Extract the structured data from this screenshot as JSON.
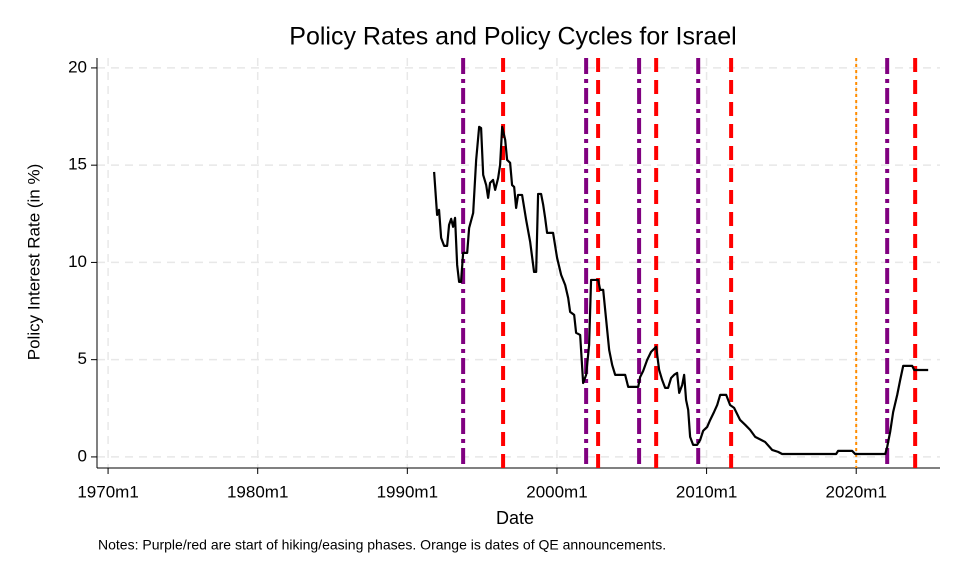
{
  "chart_data": {
    "type": "line",
    "title": "Policy Rates and Policy Cycles for Israel",
    "x_label": "Date",
    "y_label": "Policy Interest Rate (in %)",
    "note": "Notes: Purple/red are start of hiking/easing phases. Orange is dates of QE announcements.",
    "xlim": [
      1969.26,
      2025.6
    ],
    "ylim": [
      -0.57,
      20.51
    ],
    "xticks": [
      {
        "value": 1970,
        "label": "1970m1"
      },
      {
        "value": 1980,
        "label": "1980m1"
      },
      {
        "value": 1990,
        "label": "1990m1"
      },
      {
        "value": 2000,
        "label": "2000m1"
      },
      {
        "value": 2010,
        "label": "2010m1"
      },
      {
        "value": 2020,
        "label": "2020m1"
      }
    ],
    "yticks": [
      0,
      5,
      10,
      15,
      20
    ],
    "grid": true,
    "color": "#000000",
    "x": [
      1991.79,
      1991.99,
      1992.12,
      1992.26,
      1992.46,
      1992.66,
      1992.79,
      1992.93,
      1993.06,
      1993.19,
      1993.33,
      1993.46,
      1993.59,
      1993.73,
      1994.0,
      1994.13,
      1994.4,
      1994.6,
      1994.8,
      1994.93,
      1995.07,
      1995.27,
      1995.4,
      1995.53,
      1995.73,
      1995.87,
      1996.07,
      1996.2,
      1996.34,
      1996.54,
      1996.67,
      1996.87,
      1997.0,
      1997.14,
      1997.27,
      1997.4,
      1997.67,
      1997.94,
      1998.21,
      1998.47,
      1998.61,
      1998.74,
      1998.94,
      1999.08,
      1999.21,
      1999.34,
      1999.74,
      2000.01,
      2000.28,
      2000.55,
      2000.75,
      2000.88,
      2001.15,
      2001.28,
      2001.55,
      2001.75,
      2001.95,
      2002.15,
      2002.28,
      2002.75,
      2002.89,
      2003.09,
      2003.29,
      2003.49,
      2003.69,
      2003.89,
      2004.56,
      2004.76,
      2005.43,
      2005.56,
      2005.76,
      2006.03,
      2006.29,
      2006.63,
      2006.83,
      2007.03,
      2007.23,
      2007.43,
      2007.63,
      2007.83,
      2008.03,
      2008.17,
      2008.37,
      2008.5,
      2008.63,
      2008.77,
      2008.9,
      2009.1,
      2009.37,
      2009.57,
      2009.77,
      2010.04,
      2010.24,
      2010.5,
      2010.71,
      2010.91,
      2011.31,
      2011.57,
      2011.84,
      2012.24,
      2012.58,
      2012.91,
      2013.25,
      2013.91,
      2014.38,
      2014.78,
      2015.05,
      2018.66,
      2018.79,
      2019.73,
      2019.93,
      2021.94,
      2022.07,
      2022.27,
      2022.47,
      2022.74,
      2022.94,
      2023.14,
      2023.74,
      2023.88,
      2024.81
    ],
    "values": [
      14.65,
      12.44,
      12.7,
      11.26,
      10.85,
      10.85,
      11.93,
      12.24,
      11.83,
      12.29,
      9.87,
      9.0,
      9.0,
      10.49,
      10.49,
      11.77,
      12.54,
      15.27,
      16.97,
      16.91,
      14.5,
      13.98,
      13.32,
      14.09,
      14.24,
      13.73,
      14.34,
      15.01,
      16.97,
      16.3,
      15.27,
      15.12,
      13.98,
      13.88,
      12.8,
      13.47,
      13.47,
      12.19,
      11.05,
      9.51,
      9.51,
      13.52,
      13.52,
      12.96,
      12.29,
      11.52,
      11.52,
      10.23,
      9.36,
      8.84,
      8.17,
      7.46,
      7.3,
      6.38,
      6.27,
      3.8,
      4.22,
      5.76,
      9.1,
      9.1,
      8.59,
      8.59,
      7.04,
      5.5,
      4.73,
      4.22,
      4.22,
      3.6,
      3.6,
      4.11,
      4.42,
      4.99,
      5.4,
      5.66,
      4.47,
      3.96,
      3.55,
      3.55,
      4.06,
      4.22,
      4.32,
      3.29,
      3.7,
      4.22,
      2.93,
      2.42,
      1.03,
      0.62,
      0.62,
      0.87,
      1.34,
      1.54,
      1.9,
      2.31,
      2.67,
      3.19,
      3.19,
      2.67,
      2.52,
      1.9,
      1.65,
      1.39,
      1.03,
      0.77,
      0.36,
      0.26,
      0.15,
      0.15,
      0.31,
      0.31,
      0.15,
      0.15,
      0.51,
      1.29,
      2.31,
      3.19,
      3.96,
      4.68,
      4.68,
      4.47,
      4.47
    ],
    "vlines": [
      {
        "x": 1993.73,
        "color": "#800080",
        "style": "dashdot"
      },
      {
        "x": 1996.4,
        "color": "#ff0000",
        "style": "dash"
      },
      {
        "x": 2001.95,
        "color": "#800080",
        "style": "dashdot"
      },
      {
        "x": 2002.75,
        "color": "#ff0000",
        "style": "dash"
      },
      {
        "x": 2005.49,
        "color": "#800080",
        "style": "dashdot"
      },
      {
        "x": 2006.63,
        "color": "#ff0000",
        "style": "dash"
      },
      {
        "x": 2009.44,
        "color": "#800080",
        "style": "dashdot"
      },
      {
        "x": 2011.64,
        "color": "#ff0000",
        "style": "dash"
      },
      {
        "x": 2020.0,
        "color": "#ff8c00",
        "style": "dot"
      },
      {
        "x": 2022.07,
        "color": "#800080",
        "style": "dashdot"
      },
      {
        "x": 2023.94,
        "color": "#ff0000",
        "style": "dash"
      }
    ]
  }
}
